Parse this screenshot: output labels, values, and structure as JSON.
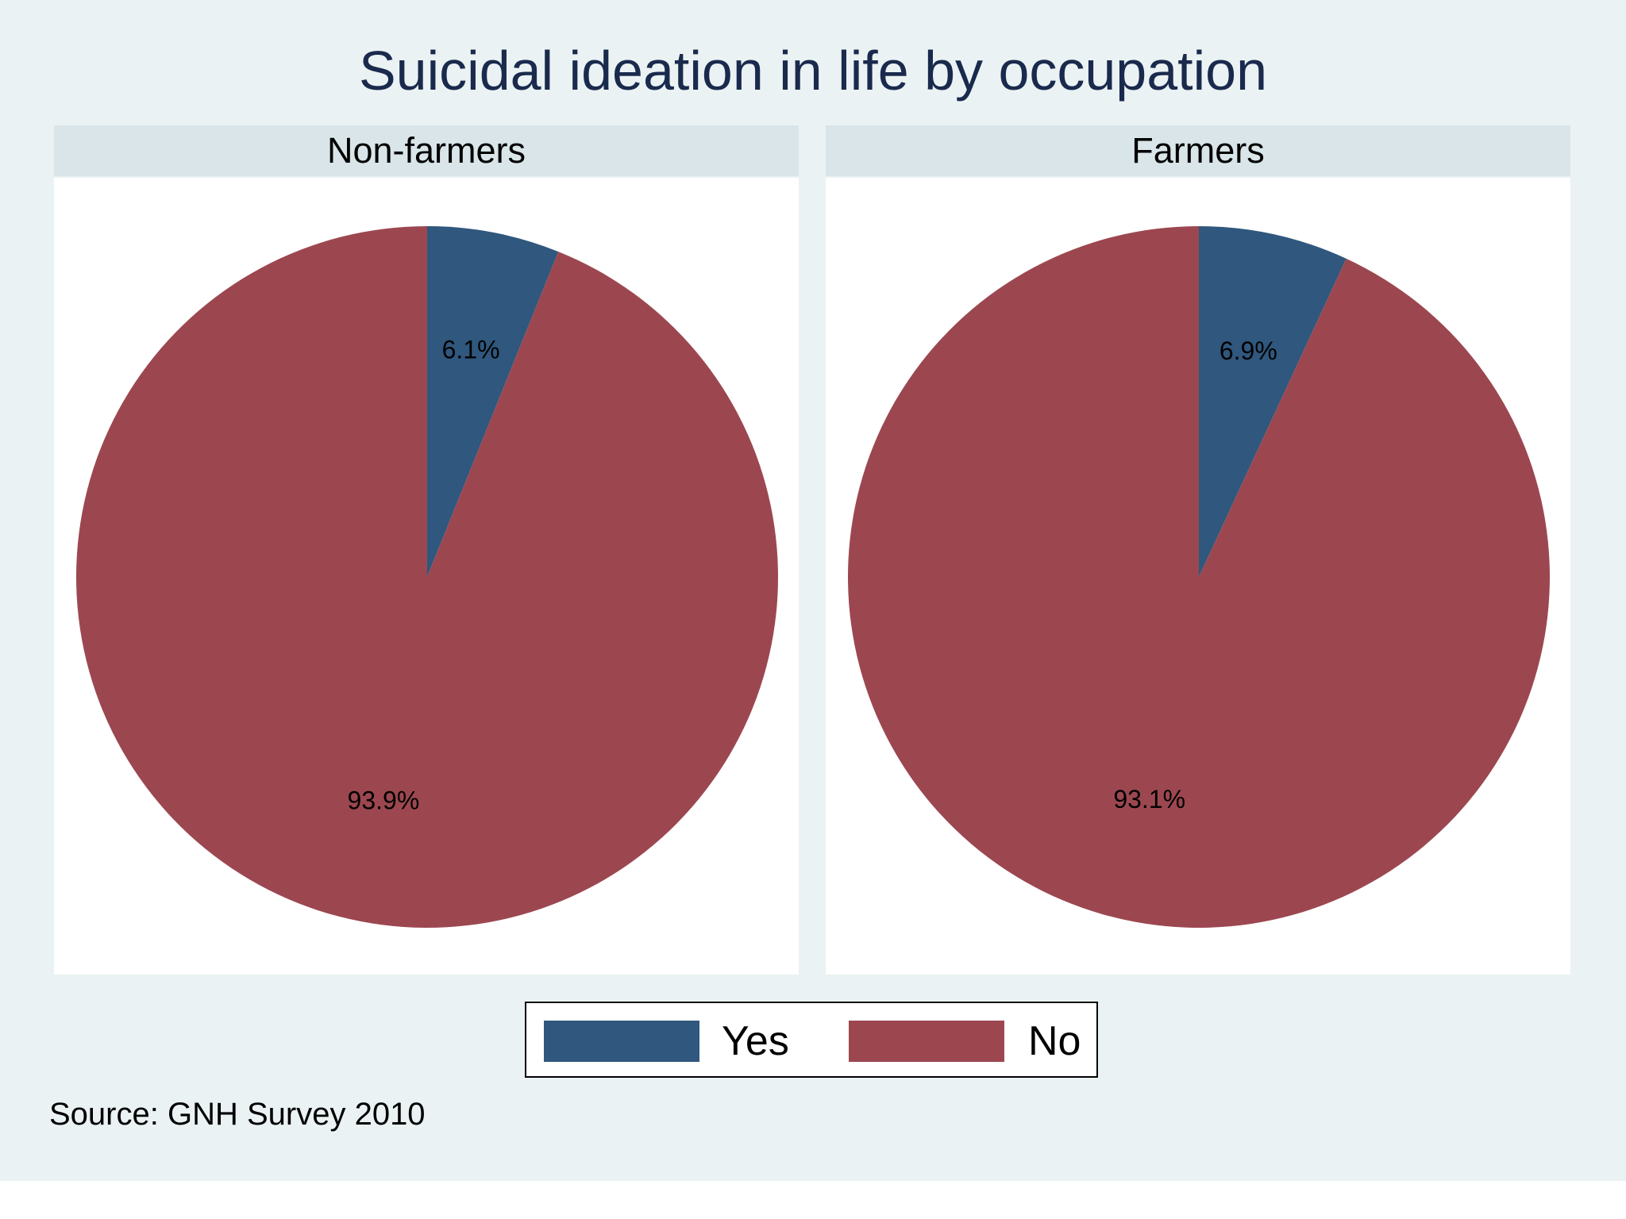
{
  "chart_data": {
    "type": "pie",
    "title": "Suicidal ideation in life by occupation",
    "legend": [
      {
        "label": "Yes",
        "color": "#30577d"
      },
      {
        "label": "No",
        "color": "#9c4750"
      }
    ],
    "legend_position": "bottom-center",
    "panels": [
      {
        "label": "Non-farmers",
        "slices": [
          {
            "category": "Yes",
            "value": 6.1,
            "label": "6.1%"
          },
          {
            "category": "No",
            "value": 93.9,
            "label": "93.9%"
          }
        ]
      },
      {
        "label": "Farmers",
        "slices": [
          {
            "category": "Yes",
            "value": 6.9,
            "label": "6.9%"
          },
          {
            "category": "No",
            "value": 93.1,
            "label": "93.1%"
          }
        ]
      }
    ],
    "note": "Source: GNH Survey 2010"
  }
}
